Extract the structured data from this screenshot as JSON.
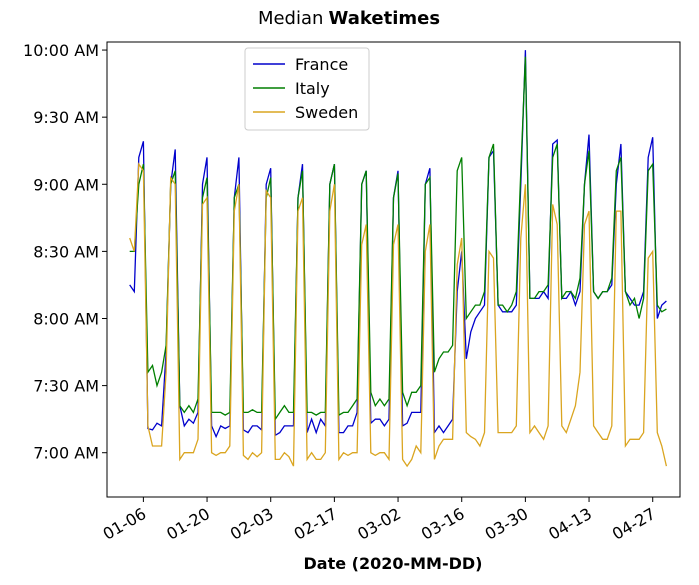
{
  "chart_data": {
    "type": "line",
    "title": "Median",
    "title_emphasis": "Waketimes",
    "x_label": "Date (2020-MM-DD)",
    "x": [
      "2020-01-03",
      "2020-01-04",
      "2020-01-05",
      "2020-01-06",
      "2020-01-07",
      "2020-01-08",
      "2020-01-09",
      "2020-01-10",
      "2020-01-11",
      "2020-01-12",
      "2020-01-13",
      "2020-01-14",
      "2020-01-15",
      "2020-01-16",
      "2020-01-17",
      "2020-01-18",
      "2020-01-19",
      "2020-01-20",
      "2020-01-21",
      "2020-01-22",
      "2020-01-23",
      "2020-01-24",
      "2020-01-25",
      "2020-01-26",
      "2020-01-27",
      "2020-01-28",
      "2020-01-29",
      "2020-01-30",
      "2020-01-31",
      "2020-02-01",
      "2020-02-02",
      "2020-02-03",
      "2020-02-04",
      "2020-02-05",
      "2020-02-06",
      "2020-02-07",
      "2020-02-08",
      "2020-02-09",
      "2020-02-10",
      "2020-02-11",
      "2020-02-12",
      "2020-02-13",
      "2020-02-14",
      "2020-02-15",
      "2020-02-16",
      "2020-02-17",
      "2020-02-18",
      "2020-02-19",
      "2020-02-20",
      "2020-02-21",
      "2020-02-22",
      "2020-02-23",
      "2020-02-24",
      "2020-02-25",
      "2020-02-26",
      "2020-02-27",
      "2020-02-28",
      "2020-02-29",
      "2020-03-01",
      "2020-03-02",
      "2020-03-03",
      "2020-03-04",
      "2020-03-05",
      "2020-03-06",
      "2020-03-07",
      "2020-03-08",
      "2020-03-09",
      "2020-03-10",
      "2020-03-11",
      "2020-03-12",
      "2020-03-13",
      "2020-03-14",
      "2020-03-15",
      "2020-03-16",
      "2020-03-17",
      "2020-03-18",
      "2020-03-19",
      "2020-03-20",
      "2020-03-21",
      "2020-03-22",
      "2020-03-23",
      "2020-03-24",
      "2020-03-25",
      "2020-03-26",
      "2020-03-27",
      "2020-03-28",
      "2020-03-29",
      "2020-03-30",
      "2020-03-31",
      "2020-04-01",
      "2020-04-02",
      "2020-04-03",
      "2020-04-04",
      "2020-04-05",
      "2020-04-06",
      "2020-04-07",
      "2020-04-08",
      "2020-04-09",
      "2020-04-10",
      "2020-04-11",
      "2020-04-12",
      "2020-04-13",
      "2020-04-14",
      "2020-04-15",
      "2020-04-16",
      "2020-04-17",
      "2020-04-18",
      "2020-04-19",
      "2020-04-20",
      "2020-04-21",
      "2020-04-22",
      "2020-04-23",
      "2020-04-24",
      "2020-04-25",
      "2020-04-26",
      "2020-04-27",
      "2020-04-28",
      "2020-04-29",
      "2020-04-30"
    ],
    "series": [
      {
        "name": "France",
        "color": "#0000cc",
        "values": [
          8.25,
          8.2,
          9.2,
          9.32,
          7.18,
          7.17,
          7.22,
          7.2,
          7.75,
          9.0,
          9.26,
          7.35,
          7.2,
          7.25,
          7.22,
          7.3,
          9.0,
          9.2,
          7.2,
          7.12,
          7.2,
          7.18,
          7.2,
          8.9,
          9.2,
          7.17,
          7.15,
          7.2,
          7.2,
          7.17,
          9.0,
          9.12,
          7.13,
          7.15,
          7.2,
          7.2,
          7.2,
          8.9,
          9.15,
          7.15,
          7.25,
          7.15,
          7.25,
          7.2,
          9.0,
          9.15,
          7.15,
          7.15,
          7.2,
          7.2,
          7.3,
          9.0,
          9.1,
          7.22,
          7.25,
          7.25,
          7.2,
          7.25,
          8.9,
          9.1,
          7.2,
          7.22,
          7.3,
          7.3,
          7.3,
          9.0,
          9.12,
          7.15,
          7.2,
          7.15,
          7.2,
          7.25,
          8.2,
          8.5,
          7.7,
          7.9,
          8.0,
          8.05,
          8.1,
          9.2,
          9.25,
          8.1,
          8.05,
          8.05,
          8.05,
          8.1,
          9.0,
          10.0,
          8.15,
          8.15,
          8.15,
          8.2,
          8.15,
          9.3,
          9.33,
          8.15,
          8.15,
          8.2,
          8.1,
          8.2,
          9.0,
          9.37,
          8.2,
          8.15,
          8.2,
          8.2,
          8.25,
          9.0,
          9.3,
          8.2,
          8.15,
          8.1,
          8.1,
          8.2,
          9.2,
          9.35,
          8.0,
          8.1,
          8.13
        ]
      },
      {
        "name": "Italy",
        "color": "#007f00",
        "values": [
          8.5,
          8.5,
          9.0,
          9.15,
          7.6,
          7.65,
          7.5,
          7.6,
          7.8,
          9.0,
          9.1,
          7.35,
          7.3,
          7.35,
          7.3,
          7.4,
          8.9,
          9.05,
          7.3,
          7.3,
          7.3,
          7.28,
          7.3,
          8.9,
          9.0,
          7.3,
          7.3,
          7.32,
          7.3,
          7.3,
          8.9,
          9.05,
          7.25,
          7.3,
          7.35,
          7.3,
          7.3,
          8.9,
          9.1,
          7.3,
          7.3,
          7.28,
          7.3,
          7.3,
          9.0,
          9.15,
          7.28,
          7.3,
          7.3,
          7.35,
          7.4,
          9.0,
          9.1,
          7.45,
          7.35,
          7.4,
          7.35,
          7.4,
          8.9,
          9.08,
          7.45,
          7.35,
          7.45,
          7.45,
          7.5,
          9.0,
          9.05,
          7.6,
          7.7,
          7.75,
          7.75,
          7.8,
          9.1,
          9.2,
          8.0,
          8.05,
          8.1,
          8.1,
          8.2,
          9.2,
          9.3,
          8.1,
          8.1,
          8.05,
          8.1,
          8.2,
          9.1,
          9.95,
          8.15,
          8.15,
          8.2,
          8.2,
          8.25,
          9.2,
          9.3,
          8.15,
          8.2,
          8.2,
          8.15,
          8.3,
          9.0,
          9.25,
          8.2,
          8.15,
          8.2,
          8.2,
          8.3,
          9.1,
          9.2,
          8.2,
          8.1,
          8.15,
          8.0,
          8.15,
          9.1,
          9.15,
          8.1,
          8.05,
          8.07
        ]
      },
      {
        "name": "Sweden",
        "color": "#daa520",
        "values": [
          8.6,
          8.5,
          9.15,
          9.1,
          7.2,
          7.05,
          7.05,
          7.05,
          7.6,
          9.05,
          9.0,
          6.95,
          7.0,
          7.0,
          7.0,
          7.1,
          8.85,
          8.9,
          7.0,
          6.98,
          7.0,
          7.0,
          7.05,
          8.8,
          9.0,
          6.98,
          6.95,
          7.0,
          6.97,
          7.0,
          8.95,
          8.9,
          6.95,
          6.95,
          7.0,
          6.97,
          6.9,
          8.8,
          8.9,
          6.95,
          7.0,
          6.95,
          6.95,
          7.0,
          8.8,
          9.0,
          6.95,
          7.0,
          6.98,
          7.0,
          7.0,
          8.55,
          8.7,
          7.0,
          6.98,
          7.0,
          7.0,
          6.95,
          8.55,
          8.7,
          6.95,
          6.9,
          6.95,
          7.05,
          7.0,
          8.5,
          8.7,
          6.95,
          7.05,
          7.1,
          7.1,
          7.1,
          8.4,
          8.6,
          7.15,
          7.12,
          7.1,
          7.05,
          7.15,
          8.5,
          8.45,
          7.15,
          7.15,
          7.15,
          7.15,
          7.2,
          8.6,
          9.0,
          7.15,
          7.2,
          7.15,
          7.1,
          7.2,
          8.85,
          8.7,
          7.2,
          7.15,
          7.25,
          7.35,
          7.6,
          8.7,
          8.8,
          7.2,
          7.15,
          7.1,
          7.1,
          7.2,
          8.8,
          8.8,
          7.05,
          7.1,
          7.1,
          7.1,
          7.15,
          8.45,
          8.5,
          7.15,
          7.05,
          6.9
        ]
      }
    ],
    "xlim": [
      "2019-12-29",
      "2020-05-03"
    ],
    "xticks": [
      {
        "value": "2020-01-06",
        "label": "01-06"
      },
      {
        "value": "2020-01-20",
        "label": "01-20"
      },
      {
        "value": "2020-02-03",
        "label": "02-03"
      },
      {
        "value": "2020-02-17",
        "label": "02-17"
      },
      {
        "value": "2020-03-02",
        "label": "03-02"
      },
      {
        "value": "2020-03-16",
        "label": "03-16"
      },
      {
        "value": "2020-03-30",
        "label": "03-30"
      },
      {
        "value": "2020-04-13",
        "label": "04-13"
      },
      {
        "value": "2020-04-27",
        "label": "04-27"
      }
    ],
    "ylim": [
      6.67,
      10.06
    ],
    "yticks": [
      {
        "value": 7,
        "label": "7:00 AM"
      },
      {
        "value": 7.5,
        "label": "7:30 AM"
      },
      {
        "value": 8,
        "label": "8:00 AM"
      },
      {
        "value": 8.5,
        "label": "8:30 AM"
      },
      {
        "value": 9,
        "label": "9:00 AM"
      },
      {
        "value": 9.5,
        "label": "9:30 AM"
      },
      {
        "value": 10,
        "label": "10:00 AM"
      }
    ],
    "legend": "upper center",
    "grid": false
  }
}
